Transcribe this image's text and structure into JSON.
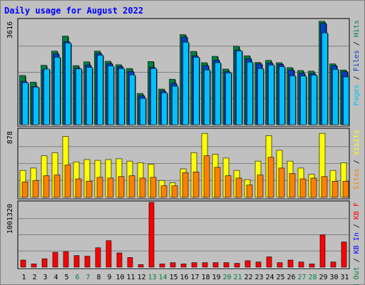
{
  "chart_data": {
    "type": "bar",
    "title": "Daily usage for August 2022",
    "categories": [
      "1",
      "2",
      "3",
      "4",
      "5",
      "6",
      "7",
      "8",
      "9",
      "10",
      "11",
      "12",
      "13",
      "14",
      "15",
      "16",
      "17",
      "18",
      "19",
      "20",
      "21",
      "22",
      "23",
      "24",
      "25",
      "26",
      "27",
      "28",
      "29",
      "30",
      "31"
    ],
    "weekend_days": [
      "6",
      "7",
      "13",
      "14",
      "20",
      "21",
      "27",
      "28"
    ],
    "panels": [
      {
        "id": "top",
        "max_label": "3616",
        "ymax": 3616,
        "right_labels": [
          {
            "text": "Hits",
            "color": "#008040"
          },
          {
            "text": " / ",
            "color": "#000000"
          },
          {
            "text": "Files",
            "color": "#0040c0"
          },
          {
            "text": " / ",
            "color": "#000000"
          },
          {
            "text": "Pages",
            "color": "#00c0ff"
          }
        ],
        "series": [
          {
            "name": "Hits",
            "color": "#008040",
            "values": [
              1700,
              1470,
              2050,
              2540,
              3060,
              2040,
              2170,
              2540,
              2190,
              2070,
              1940,
              1080,
              2180,
              1230,
              1570,
              3110,
              2530,
              2140,
              2360,
              1920,
              2710,
              2380,
              2150,
              2220,
              2140,
              1970,
              1870,
              1850,
              3570,
              2100,
              1890
            ]
          },
          {
            "name": "Files",
            "color": "#0040c0",
            "values": [
              1500,
              1320,
              1900,
              2450,
              2870,
              1950,
              2060,
              2460,
              2110,
              2000,
              1840,
              1000,
              1980,
              1160,
              1430,
              3030,
              2380,
              2040,
              2230,
              1830,
              2580,
              2280,
              2100,
              2130,
              2080,
              1890,
              1780,
              1770,
              3500,
              2040,
              1830
            ]
          },
          {
            "name": "Pages",
            "color": "#00c0ff",
            "values": [
              1450,
              1300,
              1920,
              2330,
              2820,
              1930,
              1980,
              2400,
              2030,
              1940,
              1720,
              910,
              1940,
              1100,
              1330,
              2850,
              2330,
              1890,
              2140,
              1790,
              2550,
              2160,
              1940,
              2060,
              2000,
              1690,
              1680,
              1710,
              3170,
              1910,
              1650
            ]
          }
        ]
      },
      {
        "id": "middle",
        "max_label": "878",
        "ymax": 878,
        "right_labels": [
          {
            "text": "Visits",
            "color": "#ffff00"
          },
          {
            "text": " / ",
            "color": "#000000"
          },
          {
            "text": "Sites",
            "color": "#ff8000"
          }
        ],
        "series": [
          {
            "name": "Visits",
            "color": "#ffff00",
            "values": [
              350,
              380,
              540,
              580,
              790,
              460,
              490,
              480,
              490,
              500,
              470,
              450,
              430,
              220,
              190,
              370,
              580,
              830,
              560,
              510,
              350,
              230,
              470,
              800,
              610,
              470,
              380,
              300,
              830,
              350,
              450
            ]
          },
          {
            "name": "Sites",
            "color": "#ff8000",
            "values": [
              200,
              220,
              280,
              290,
              420,
              240,
              210,
              260,
              250,
              270,
              280,
              250,
              260,
              150,
              150,
              320,
              330,
              540,
              390,
              280,
              250,
              160,
              290,
              520,
              380,
              310,
              240,
              250,
              270,
              210,
              210
            ]
          }
        ]
      },
      {
        "id": "bottom",
        "max_label": "1001320",
        "ymax": 1001320,
        "right_labels": [
          {
            "text": "KB F",
            "color": "#ff0000"
          },
          {
            "text": " / ",
            "color": "#000000"
          },
          {
            "text": "KB In",
            "color": "#0000ff"
          },
          {
            "text": " / ",
            "color": "#000000"
          },
          {
            "text": "KB Out",
            "color": "#008040"
          }
        ],
        "series": [
          {
            "name": "KB F",
            "color": "#ff0000",
            "values": [
              110000,
              50000,
              130000,
              230000,
              240000,
              180000,
              170000,
              300000,
              410000,
              220000,
              150000,
              40000,
              1001320,
              50000,
              70000,
              50000,
              70000,
              70000,
              70000,
              70000,
              60000,
              100000,
              80000,
              160000,
              70000,
              110000,
              80000,
              50000,
              500000,
              80000,
              390000
            ]
          }
        ]
      }
    ]
  }
}
